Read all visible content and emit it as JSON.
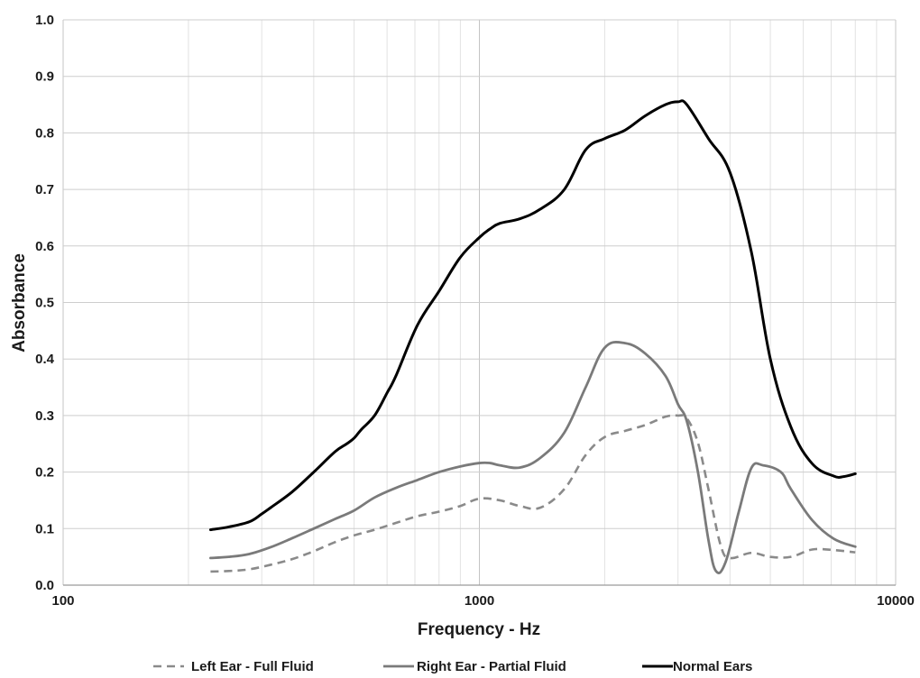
{
  "chart_data": {
    "type": "line",
    "title": "",
    "xlabel": "Frequency - Hz",
    "ylabel": "Absorbance",
    "x_scale": "log",
    "xlim": [
      100,
      10000
    ],
    "ylim": [
      0,
      1.0
    ],
    "x_ticks": [
      100,
      1000,
      10000
    ],
    "x_tick_labels": [
      "100",
      "1000",
      "10000"
    ],
    "y_ticks": [
      0.0,
      0.1,
      0.2,
      0.3,
      0.4,
      0.5,
      0.6,
      0.7,
      0.8,
      0.9,
      1.0
    ],
    "y_tick_labels": [
      "0.0",
      "0.1",
      "0.2",
      "0.3",
      "0.4",
      "0.5",
      "0.6",
      "0.7",
      "0.8",
      "0.9",
      "1.0"
    ],
    "grid": true,
    "legend_position": "bottom",
    "series": [
      {
        "name": "Left Ear - Full Fluid",
        "color": "#8a8a8a",
        "dash": "dashed",
        "x": [
          226,
          250,
          280,
          315,
          355,
          400,
          450,
          500,
          560,
          630,
          710,
          800,
          900,
          1000,
          1120,
          1250,
          1400,
          1600,
          1800,
          2000,
          2240,
          2500,
          2800,
          3000,
          3150,
          3350,
          3550,
          3800,
          4000,
          4500,
          5000,
          5600,
          6300,
          7100,
          8000
        ],
        "y": [
          0.024,
          0.025,
          0.028,
          0.036,
          0.046,
          0.06,
          0.076,
          0.088,
          0.098,
          0.11,
          0.122,
          0.13,
          0.14,
          0.153,
          0.15,
          0.14,
          0.137,
          0.17,
          0.23,
          0.262,
          0.273,
          0.283,
          0.298,
          0.3,
          0.295,
          0.252,
          0.17,
          0.07,
          0.048,
          0.057,
          0.05,
          0.05,
          0.063,
          0.062,
          0.058
        ]
      },
      {
        "name": "Right Ear - Partial Fluid",
        "color": "#7a7a7a",
        "dash": "solid",
        "x": [
          226,
          250,
          280,
          315,
          355,
          400,
          450,
          500,
          560,
          630,
          710,
          800,
          900,
          1000,
          1060,
          1120,
          1250,
          1400,
          1600,
          1800,
          2000,
          2240,
          2500,
          2800,
          3000,
          3150,
          3350,
          3550,
          3700,
          3900,
          4200,
          4500,
          4800,
          5300,
          5600,
          6300,
          7100,
          8000
        ],
        "y": [
          0.048,
          0.05,
          0.055,
          0.067,
          0.083,
          0.1,
          0.117,
          0.132,
          0.155,
          0.172,
          0.186,
          0.2,
          0.21,
          0.216,
          0.216,
          0.212,
          0.208,
          0.225,
          0.27,
          0.35,
          0.42,
          0.428,
          0.41,
          0.37,
          0.32,
          0.29,
          0.2,
          0.08,
          0.025,
          0.04,
          0.13,
          0.207,
          0.212,
          0.2,
          0.17,
          0.115,
          0.082,
          0.068
        ]
      },
      {
        "name": "Normal Ears",
        "color": "#000000",
        "dash": "solid",
        "x": [
          226,
          250,
          280,
          300,
          315,
          355,
          400,
          450,
          480,
          500,
          520,
          560,
          600,
          630,
          710,
          800,
          900,
          1000,
          1060,
          1120,
          1250,
          1400,
          1600,
          1800,
          2000,
          2240,
          2500,
          2800,
          3000,
          3150,
          3550,
          4000,
          4500,
          5000,
          5600,
          6300,
          7100,
          7500,
          8000
        ],
        "y": [
          0.098,
          0.103,
          0.112,
          0.126,
          0.137,
          0.165,
          0.2,
          0.236,
          0.25,
          0.26,
          0.275,
          0.3,
          0.34,
          0.37,
          0.46,
          0.52,
          0.58,
          0.615,
          0.63,
          0.64,
          0.648,
          0.665,
          0.7,
          0.77,
          0.79,
          0.805,
          0.83,
          0.85,
          0.855,
          0.85,
          0.79,
          0.73,
          0.59,
          0.4,
          0.28,
          0.215,
          0.193,
          0.192,
          0.197
        ]
      }
    ]
  }
}
